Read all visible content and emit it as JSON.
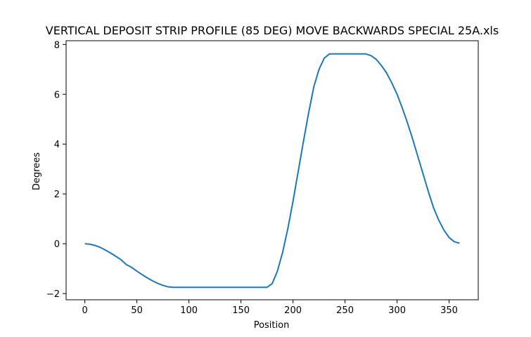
{
  "chart_data": {
    "type": "line",
    "title": "VERTICAL DEPOSIT STRIP PROFILE (85 DEG) MOVE BACKWARDS SPECIAL 25A.xls",
    "xlabel": "Position",
    "ylabel": "Degrees",
    "xlim": [
      -18,
      378
    ],
    "ylim": [
      -2.25,
      8.15
    ],
    "xticks": [
      0,
      50,
      100,
      150,
      200,
      250,
      300,
      350
    ],
    "yticks": [
      -2,
      0,
      2,
      4,
      6,
      8
    ],
    "grid": false,
    "series": [
      {
        "color": "#1f77b4",
        "x": [
          0,
          5,
          10,
          15,
          20,
          25,
          30,
          35,
          40,
          45,
          50,
          55,
          60,
          65,
          70,
          75,
          80,
          85,
          90,
          95,
          100,
          110,
          120,
          130,
          140,
          150,
          160,
          170,
          175,
          180,
          185,
          190,
          195,
          200,
          205,
          210,
          215,
          220,
          225,
          230,
          235,
          240,
          250,
          260,
          270,
          275,
          280,
          285,
          290,
          295,
          300,
          305,
          310,
          315,
          320,
          325,
          330,
          335,
          340,
          345,
          350,
          355,
          360
        ],
        "y": [
          0,
          -0.02,
          -0.07,
          -0.15,
          -0.26,
          -0.38,
          -0.51,
          -0.65,
          -0.84,
          -0.95,
          -1.1,
          -1.24,
          -1.37,
          -1.49,
          -1.59,
          -1.67,
          -1.73,
          -1.75,
          -1.75,
          -1.75,
          -1.75,
          -1.75,
          -1.75,
          -1.75,
          -1.75,
          -1.75,
          -1.75,
          -1.75,
          -1.75,
          -1.6,
          -1.1,
          -0.35,
          0.6,
          1.7,
          2.9,
          4.1,
          5.25,
          6.3,
          7.0,
          7.45,
          7.62,
          7.62,
          7.62,
          7.62,
          7.62,
          7.55,
          7.4,
          7.15,
          6.85,
          6.45,
          6.0,
          5.45,
          4.85,
          4.2,
          3.5,
          2.8,
          2.1,
          1.45,
          0.95,
          0.55,
          0.25,
          0.08,
          0.02
        ]
      }
    ]
  }
}
